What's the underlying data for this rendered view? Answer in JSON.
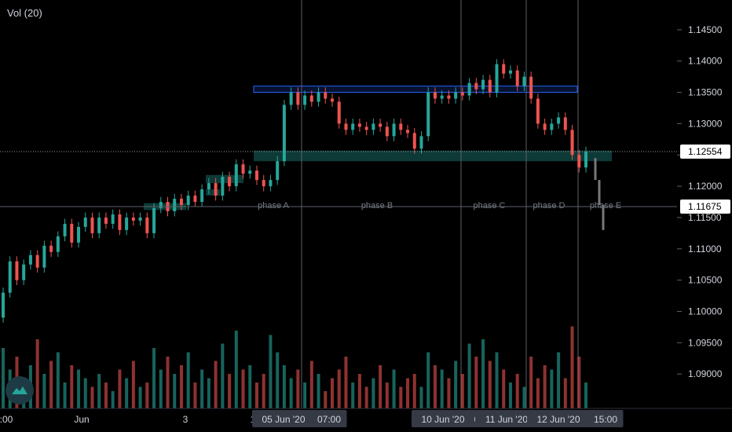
{
  "indicator_label": "Vol (20)",
  "colors": {
    "up": "#26a69a",
    "down": "#ef5350",
    "projection": "#787878",
    "zone_blue": "#2962ff",
    "zone_teal": "#26a69a",
    "badge_bg": "#363a45",
    "price_badge_bg": "#ffffff",
    "vline": "#5d606b",
    "phase_text": "#787b86",
    "axis_text": "#d1d4dc"
  },
  "chart_data": {
    "type": "candlestick",
    "title": "",
    "ylim": [
      1.0845,
      1.1485
    ],
    "y_ticks": [
      "1.14500",
      "1.14000",
      "1.13500",
      "1.13000",
      "1.12500",
      "1.12000",
      "1.11500",
      "1.11000",
      "1.10500",
      "1.10000",
      "1.09500",
      "1.09000"
    ],
    "last_price": "1.12554",
    "crosshair_price": "1.11675",
    "x_labels": [
      ":00",
      "Jun",
      "3",
      "1",
      "05 Jun '20",
      "07:00",
      "10 Jun '20",
      "0",
      "11 Jun '20",
      "12 Jun '20",
      "15:00"
    ],
    "phase_labels": [
      "phase A",
      "phase B",
      "phase C",
      "phase D",
      "phase E"
    ],
    "zones": [
      {
        "name": "resistance",
        "low": 1.135,
        "high": 1.136
      },
      {
        "name": "support",
        "low": 1.124,
        "high": 1.1257
      }
    ],
    "projection": [
      {
        "from": 1.1245,
        "to": 1.121
      },
      {
        "from": 1.121,
        "to": 1.117
      },
      {
        "from": 1.117,
        "to": 1.113
      }
    ],
    "candles": [
      [
        1.099,
        1.103
      ],
      [
        1.103,
        1.108
      ],
      [
        1.108,
        1.105
      ],
      [
        1.105,
        1.1075
      ],
      [
        1.1075,
        1.109
      ],
      [
        1.109,
        1.107
      ],
      [
        1.107,
        1.1105
      ],
      [
        1.1105,
        1.1095
      ],
      [
        1.1095,
        1.112
      ],
      [
        1.112,
        1.114
      ],
      [
        1.114,
        1.111
      ],
      [
        1.111,
        1.1135
      ],
      [
        1.1135,
        1.115
      ],
      [
        1.115,
        1.1125
      ],
      [
        1.1125,
        1.115
      ],
      [
        1.115,
        1.114
      ],
      [
        1.114,
        1.1155
      ],
      [
        1.1155,
        1.113
      ],
      [
        1.113,
        1.115
      ],
      [
        1.115,
        1.1145
      ],
      [
        1.1145,
        1.115
      ],
      [
        1.115,
        1.1125
      ],
      [
        1.1125,
        1.1165
      ],
      [
        1.1165,
        1.1175
      ],
      [
        1.1175,
        1.116
      ],
      [
        1.116,
        1.118
      ],
      [
        1.118,
        1.117
      ],
      [
        1.117,
        1.1185
      ],
      [
        1.1185,
        1.1175
      ],
      [
        1.1175,
        1.1195
      ],
      [
        1.1195,
        1.1205
      ],
      [
        1.1205,
        1.1185
      ],
      [
        1.1185,
        1.1215
      ],
      [
        1.1215,
        1.12
      ],
      [
        1.12,
        1.1235
      ],
      [
        1.1235,
        1.122
      ],
      [
        1.122,
        1.1225
      ],
      [
        1.1225,
        1.121
      ],
      [
        1.121,
        1.12
      ],
      [
        1.12,
        1.121
      ],
      [
        1.121,
        1.124
      ],
      [
        1.124,
        1.133
      ],
      [
        1.133,
        1.135
      ],
      [
        1.135,
        1.133
      ],
      [
        1.133,
        1.1345
      ],
      [
        1.1345,
        1.1335
      ],
      [
        1.1335,
        1.135
      ],
      [
        1.135,
        1.134
      ],
      [
        1.134,
        1.1335
      ],
      [
        1.1335,
        1.13
      ],
      [
        1.13,
        1.129
      ],
      [
        1.129,
        1.13
      ],
      [
        1.13,
        1.1295
      ],
      [
        1.1295,
        1.129
      ],
      [
        1.129,
        1.13
      ],
      [
        1.13,
        1.1295
      ],
      [
        1.1295,
        1.128
      ],
      [
        1.128,
        1.13
      ],
      [
        1.13,
        1.129
      ],
      [
        1.129,
        1.1285
      ],
      [
        1.1285,
        1.126
      ],
      [
        1.126,
        1.128
      ],
      [
        1.128,
        1.135
      ],
      [
        1.135,
        1.134
      ],
      [
        1.134,
        1.1345
      ],
      [
        1.1345,
        1.134
      ],
      [
        1.134,
        1.135
      ],
      [
        1.135,
        1.1345
      ],
      [
        1.1345,
        1.1365
      ],
      [
        1.1365,
        1.1355
      ],
      [
        1.1355,
        1.137
      ],
      [
        1.137,
        1.135
      ],
      [
        1.135,
        1.1395
      ],
      [
        1.1395,
        1.138
      ],
      [
        1.138,
        1.1385
      ],
      [
        1.1385,
        1.136
      ],
      [
        1.136,
        1.1375
      ],
      [
        1.1375,
        1.134
      ],
      [
        1.134,
        1.13
      ],
      [
        1.13,
        1.129
      ],
      [
        1.129,
        1.13
      ],
      [
        1.13,
        1.131
      ],
      [
        1.131,
        1.129
      ],
      [
        1.129,
        1.125
      ],
      [
        1.125,
        1.123
      ],
      [
        1.123,
        1.1255
      ]
    ],
    "volumes": [
      0.7,
      0.45,
      0.6,
      0.35,
      0.5,
      0.8,
      0.4,
      0.55,
      0.65,
      0.3,
      0.5,
      0.45,
      0.35,
      0.25,
      0.4,
      0.3,
      0.2,
      0.45,
      0.35,
      0.55,
      0.25,
      0.3,
      0.7,
      0.45,
      0.6,
      0.4,
      0.5,
      0.65,
      0.3,
      0.45,
      0.35,
      0.55,
      0.75,
      0.4,
      0.9,
      0.45,
      0.5,
      0.3,
      0.4,
      0.85,
      0.65,
      0.5,
      0.35,
      0.45,
      0.3,
      0.55,
      0.4,
      0.2,
      0.35,
      0.45,
      0.6,
      0.3,
      0.4,
      0.25,
      0.35,
      0.5,
      0.3,
      0.45,
      0.25,
      0.35,
      0.4,
      0.25,
      0.65,
      0.5,
      0.45,
      0.35,
      0.55,
      0.4,
      0.75,
      0.6,
      0.8,
      0.55,
      0.65,
      0.45,
      0.3,
      0.4,
      0.25,
      0.6,
      0.35,
      0.5,
      0.45,
      0.65,
      0.35,
      0.95,
      0.6,
      0.3
    ]
  }
}
